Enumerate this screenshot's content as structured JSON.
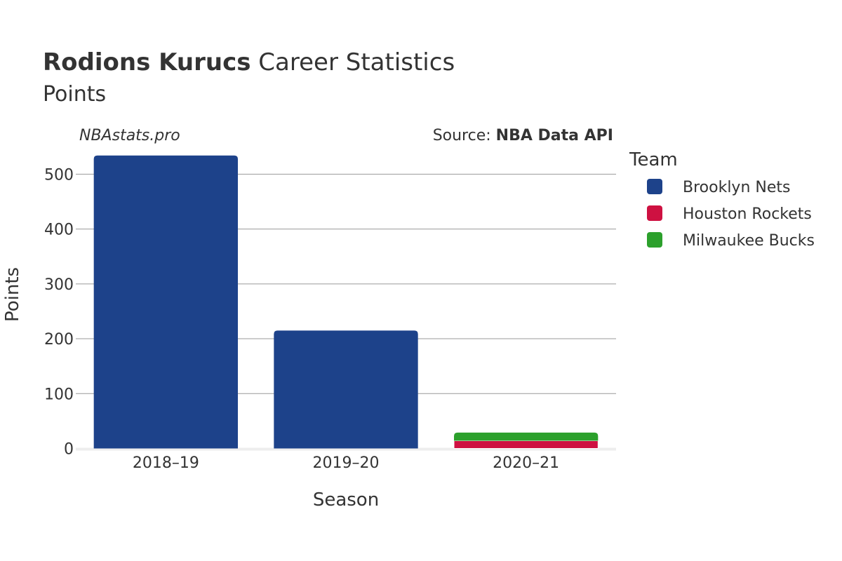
{
  "header": {
    "title_bold": "Rodions Kurucs",
    "title_rest": " Career Statistics",
    "subtitle": "Points"
  },
  "watermark": "NBAstats.pro",
  "source": {
    "prefix": "Source: ",
    "name": "NBA Data API"
  },
  "legend": {
    "title": "Team",
    "placement": "right"
  },
  "colors": {
    "Brooklyn Nets": "#1d428a",
    "Houston Rockets": "#ce1141",
    "Milwaukee Bucks": "#2ca02c",
    "grid": "#999999",
    "zero_line": "#eeeeee"
  },
  "chart_data": {
    "type": "bar",
    "stacked": true,
    "categories": [
      "2018–19",
      "2019–20",
      "2020–21"
    ],
    "series": [
      {
        "name": "Brooklyn Nets",
        "values": [
          534,
          215,
          0
        ]
      },
      {
        "name": "Houston Rockets",
        "values": [
          0,
          0,
          14
        ]
      },
      {
        "name": "Milwaukee Bucks",
        "values": [
          0,
          0,
          15
        ]
      }
    ],
    "xlabel": "Season",
    "ylabel": "Points",
    "yticks": [
      0,
      100,
      200,
      300,
      400,
      500
    ],
    "ylim": [
      0,
      560
    ],
    "grid": true
  }
}
